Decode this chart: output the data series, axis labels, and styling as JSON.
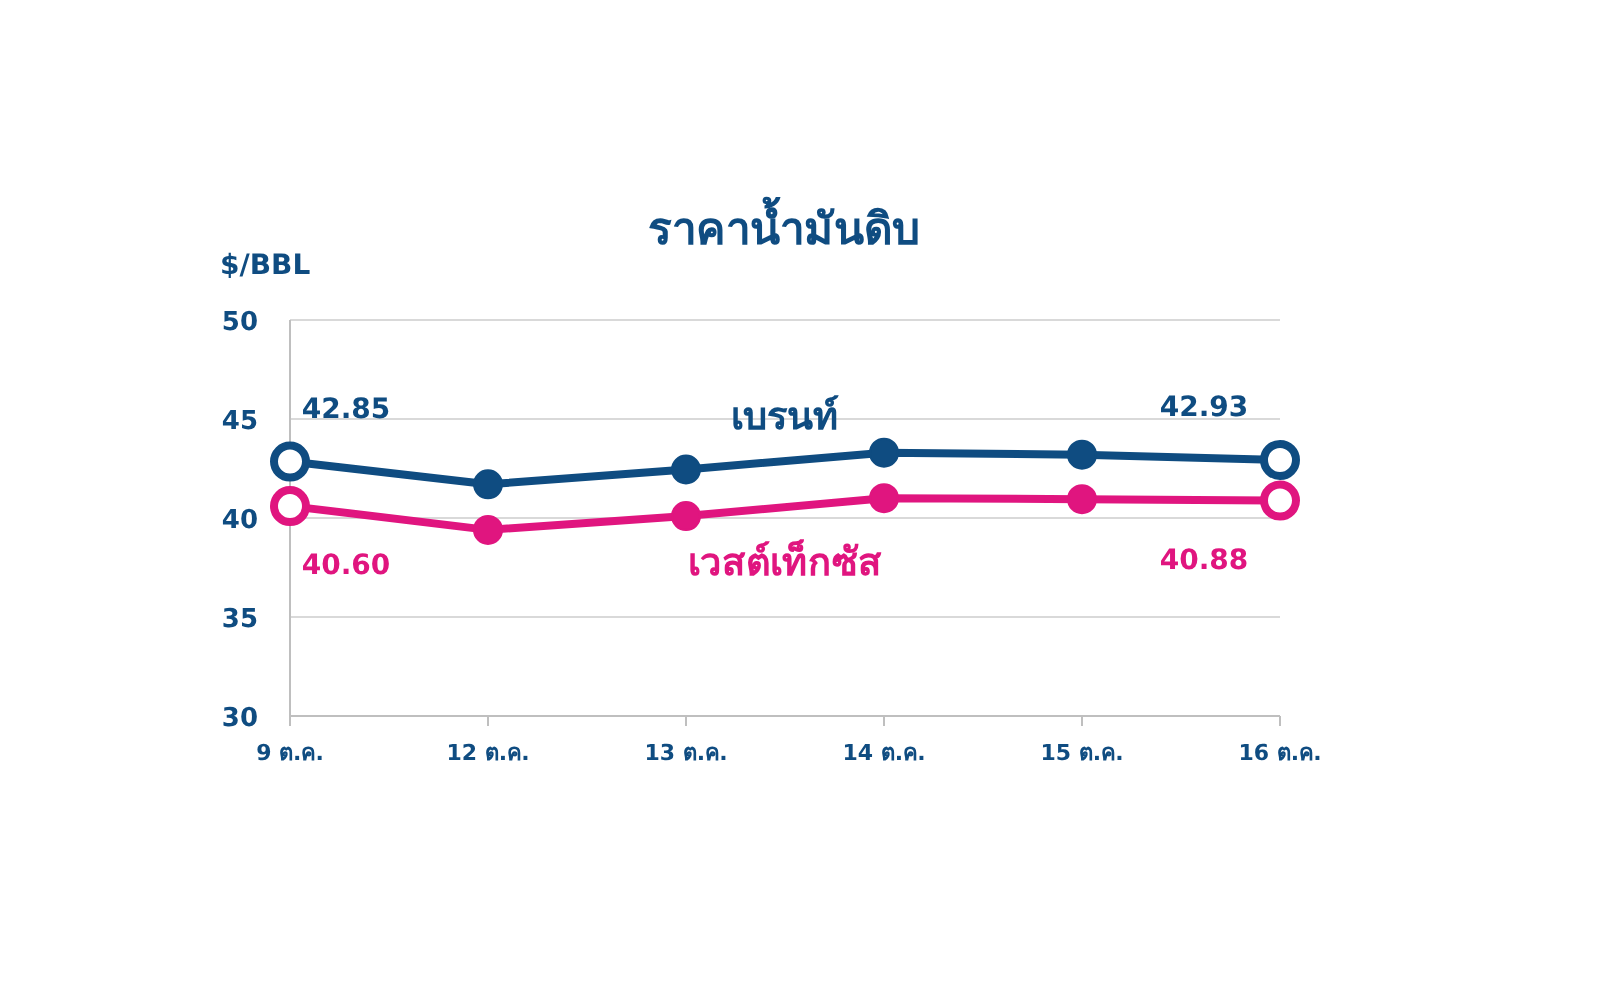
{
  "chart_data": {
    "type": "line",
    "title": "ราคาน้ำมันดิบ",
    "ylabel": "$/BBL",
    "categories": [
      "9 ต.ค.",
      "12 ต.ค.",
      "13 ต.ค.",
      "14 ต.ค.",
      "15 ต.ค.",
      "16 ต.ค."
    ],
    "series": [
      {
        "name": "เบรนท์",
        "color": "#0f4c81",
        "values": [
          42.85,
          41.7,
          42.45,
          43.3,
          43.2,
          42.93
        ],
        "value_labels": [
          "42.85",
          null,
          null,
          null,
          null,
          "42.93"
        ]
      },
      {
        "name": "เวสต์เท็กซัส",
        "color": "#e0157f",
        "values": [
          40.6,
          39.4,
          40.1,
          41.0,
          40.95,
          40.88
        ],
        "value_labels": [
          "40.60",
          null,
          null,
          null,
          null,
          "40.88"
        ]
      }
    ],
    "ylim": [
      30,
      50
    ],
    "yticks": [
      30,
      35,
      40,
      45,
      50
    ],
    "grid": "y",
    "legend": false,
    "marker": "circle",
    "line_style": "solid"
  }
}
